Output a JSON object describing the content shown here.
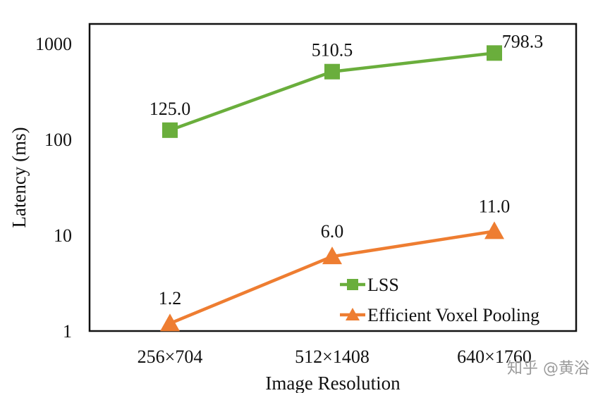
{
  "chart_data": {
    "type": "line",
    "title": "",
    "xlabel": "Image Resolution",
    "ylabel": "Latency (ms)",
    "y_scale": "log",
    "ylim": [
      1,
      1000
    ],
    "y_ticks": [
      "1",
      "10",
      "100",
      "1000"
    ],
    "categories": [
      "256×704",
      "512×1408",
      "640×1760"
    ],
    "series": [
      {
        "name": "LSS",
        "values": [
          125.0,
          510.5,
          798.3
        ],
        "labels": [
          "125.0",
          "510.5",
          "798.3"
        ],
        "color": "#6aae3c",
        "marker": "square"
      },
      {
        "name": "Efficient Voxel Pooling",
        "values": [
          1.2,
          6.0,
          11.0
        ],
        "labels": [
          "1.2",
          "6.0",
          "11.0"
        ],
        "color": "#ee7d31",
        "marker": "triangle"
      }
    ],
    "legend_position": "bottom-right",
    "grid": false
  },
  "watermark": "知乎 @黄浴"
}
